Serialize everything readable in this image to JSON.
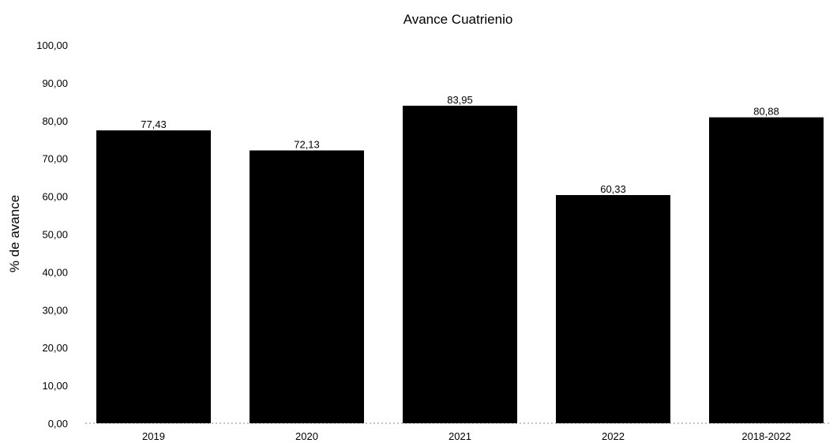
{
  "chart_data": {
    "type": "bar",
    "title": "Avance Cuatrienio",
    "xlabel": "",
    "ylabel": "% de avance",
    "categories": [
      "2019",
      "2020",
      "2021",
      "2022",
      "2018-2022"
    ],
    "values": [
      77.43,
      72.13,
      83.95,
      60.33,
      80.88
    ],
    "value_labels": [
      "77,43",
      "72,13",
      "83,95",
      "60,33",
      "80,88"
    ],
    "ylim": [
      0,
      100
    ],
    "yticks": [
      0,
      10,
      20,
      30,
      40,
      50,
      60,
      70,
      80,
      90,
      100
    ],
    "ytick_labels": [
      "0,00",
      "10,00",
      "20,00",
      "30,00",
      "40,00",
      "50,00",
      "60,00",
      "70,00",
      "80,00",
      "90,00",
      "100,00"
    ],
    "grid": false,
    "legend": "none",
    "bar_color": "#000000"
  }
}
